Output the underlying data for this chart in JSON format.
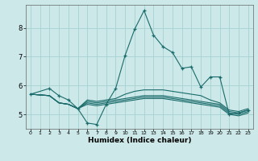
{
  "xlabel": "Humidex (Indice chaleur)",
  "background_color": "#cce8e8",
  "grid_color": "#aad4d4",
  "line_color": "#1a6b6b",
  "xlim": [
    -0.5,
    23.5
  ],
  "ylim": [
    4.5,
    8.8
  ],
  "yticks": [
    5,
    6,
    7,
    8
  ],
  "xticks": [
    0,
    1,
    2,
    3,
    4,
    5,
    6,
    7,
    8,
    9,
    10,
    11,
    12,
    13,
    14,
    15,
    16,
    17,
    18,
    19,
    20,
    21,
    22,
    23
  ],
  "lines": [
    {
      "x": [
        0,
        2,
        3,
        4,
        5,
        6,
        7,
        8,
        9,
        10,
        11,
        12,
        13,
        14,
        15,
        16,
        17,
        18,
        19,
        20,
        21,
        22,
        23
      ],
      "y": [
        5.7,
        5.9,
        5.65,
        5.5,
        5.2,
        4.7,
        4.65,
        5.35,
        5.9,
        7.05,
        7.95,
        8.6,
        7.75,
        7.35,
        7.15,
        6.6,
        6.65,
        5.95,
        6.3,
        6.3,
        5.0,
        5.05,
        5.15
      ],
      "marker": "+"
    },
    {
      "x": [
        0,
        2,
        3,
        4,
        5,
        6,
        7,
        8,
        9,
        10,
        11,
        12,
        13,
        14,
        15,
        16,
        17,
        18,
        19,
        20,
        21,
        22,
        23
      ],
      "y": [
        5.7,
        5.65,
        5.4,
        5.35,
        5.2,
        5.5,
        5.45,
        5.5,
        5.55,
        5.7,
        5.8,
        5.85,
        5.85,
        5.85,
        5.8,
        5.75,
        5.7,
        5.65,
        5.5,
        5.4,
        5.15,
        5.1,
        5.2
      ],
      "marker": null
    },
    {
      "x": [
        0,
        2,
        3,
        4,
        5,
        6,
        7,
        8,
        9,
        10,
        11,
        12,
        13,
        14,
        15,
        16,
        17,
        18,
        19,
        20,
        21,
        22,
        23
      ],
      "y": [
        5.7,
        5.65,
        5.4,
        5.35,
        5.2,
        5.45,
        5.4,
        5.45,
        5.5,
        5.55,
        5.6,
        5.65,
        5.65,
        5.65,
        5.6,
        5.55,
        5.5,
        5.45,
        5.4,
        5.35,
        5.1,
        5.05,
        5.15
      ],
      "marker": null
    },
    {
      "x": [
        0,
        2,
        3,
        4,
        5,
        6,
        7,
        8,
        9,
        10,
        11,
        12,
        13,
        14,
        15,
        16,
        17,
        18,
        19,
        20,
        21,
        22,
        23
      ],
      "y": [
        5.7,
        5.65,
        5.4,
        5.35,
        5.2,
        5.4,
        5.35,
        5.4,
        5.45,
        5.5,
        5.55,
        5.6,
        5.6,
        5.6,
        5.55,
        5.5,
        5.45,
        5.4,
        5.35,
        5.3,
        5.05,
        5.0,
        5.1
      ],
      "marker": null
    },
    {
      "x": [
        0,
        2,
        3,
        4,
        5,
        6,
        7,
        8,
        9,
        10,
        11,
        12,
        13,
        14,
        15,
        16,
        17,
        18,
        19,
        20,
        21,
        22,
        23
      ],
      "y": [
        5.7,
        5.65,
        5.4,
        5.35,
        5.2,
        5.35,
        5.3,
        5.35,
        5.4,
        5.45,
        5.5,
        5.55,
        5.55,
        5.55,
        5.5,
        5.45,
        5.4,
        5.35,
        5.3,
        5.25,
        5.0,
        4.95,
        5.05
      ],
      "marker": null
    }
  ]
}
